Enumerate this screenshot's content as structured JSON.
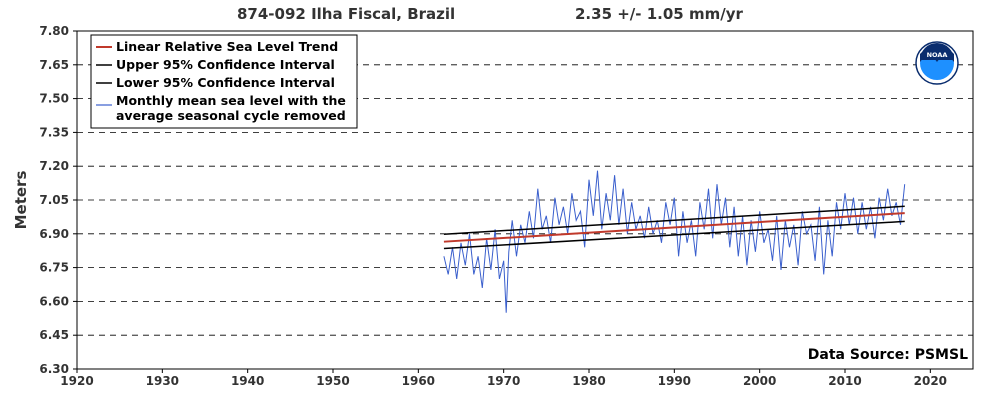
{
  "header": {
    "station": "874-092 Ilha Fiscal, Brazil",
    "trend": "2.35 +/-  1.05 mm/yr"
  },
  "data_source": "Data Source: PSMSL",
  "logo": {
    "text": "NOAA",
    "icon": "noaa-logo-icon"
  },
  "colors": {
    "trend": "#c0392b",
    "confidence": "#000000",
    "monthly": "#3a5fcd",
    "grid": "#000000",
    "logo_dark": "#0a2d6e",
    "logo_light": "#1e90ff"
  },
  "chart_data": {
    "type": "line",
    "title": "874-092 Ilha Fiscal, Brazil",
    "xlabel": "",
    "ylabel": "Meters",
    "xlim": [
      1920,
      2025
    ],
    "ylim": [
      6.3,
      7.8
    ],
    "xticks": [
      "1920",
      "1930",
      "1940",
      "1950",
      "1960",
      "1970",
      "1980",
      "1990",
      "2000",
      "2010",
      "2020"
    ],
    "yticks": [
      "6.30",
      "6.45",
      "6.60",
      "6.75",
      "6.90",
      "7.05",
      "7.20",
      "7.35",
      "7.50",
      "7.65",
      "7.80"
    ],
    "grid": "horizontal dashed",
    "legend_position": "top-left",
    "legend": [
      "Linear Relative Sea Level Trend",
      "Upper 95% Confidence Interval",
      "Lower 95% Confidence Interval",
      "Monthly mean sea level with the",
      "average seasonal cycle removed"
    ],
    "series": [
      {
        "name": "Linear Relative Sea Level Trend",
        "x": [
          1963,
          2017
        ],
        "y": [
          6.865,
          6.992
        ]
      },
      {
        "name": "Upper 95% Confidence Interval",
        "x": [
          1963,
          2017
        ],
        "y": [
          6.898,
          7.022
        ]
      },
      {
        "name": "Lower 95% Confidence Interval",
        "x": [
          1963,
          2017
        ],
        "y": [
          6.835,
          6.955
        ]
      },
      {
        "name": "Monthly mean sea level with the average seasonal cycle removed",
        "x": [
          1963,
          1963.5,
          1964,
          1964.5,
          1965,
          1965.5,
          1966,
          1966.5,
          1967,
          1967.5,
          1968,
          1968.5,
          1969,
          1969.5,
          1970,
          1970.3,
          1970.6,
          1971,
          1971.5,
          1972,
          1972.5,
          1973,
          1973.5,
          1974,
          1974.5,
          1975,
          1975.5,
          1976,
          1976.5,
          1977,
          1977.5,
          1978,
          1978.5,
          1979,
          1979.5,
          1980,
          1980.5,
          1981,
          1981.5,
          1982,
          1982.5,
          1983,
          1983.5,
          1984,
          1984.5,
          1985,
          1985.5,
          1986,
          1986.5,
          1987,
          1987.5,
          1988,
          1988.5,
          1989,
          1989.5,
          1990,
          1990.5,
          1991,
          1991.5,
          1992,
          1992.5,
          1993,
          1993.5,
          1994,
          1994.5,
          1995,
          1995.5,
          1996,
          1996.5,
          1997,
          1997.5,
          1998,
          1998.5,
          1999,
          1999.5,
          2000,
          2000.5,
          2001,
          2001.5,
          2002,
          2002.5,
          2003,
          2003.5,
          2004,
          2004.5,
          2005,
          2005.5,
          2006,
          2006.5,
          2007,
          2007.5,
          2008,
          2008.5,
          2009,
          2009.5,
          2010,
          2010.5,
          2011,
          2011.5,
          2012,
          2012.5,
          2013,
          2013.5,
          2014,
          2014.5,
          2015,
          2015.5,
          2016,
          2016.5,
          2017
        ],
        "y": [
          6.8,
          6.72,
          6.84,
          6.7,
          6.86,
          6.76,
          6.9,
          6.72,
          6.8,
          6.66,
          6.88,
          6.74,
          6.92,
          6.7,
          6.78,
          6.55,
          6.82,
          6.96,
          6.8,
          6.94,
          6.86,
          7.0,
          6.88,
          7.1,
          6.92,
          6.98,
          6.86,
          7.06,
          6.94,
          7.02,
          6.9,
          7.08,
          6.96,
          7.0,
          6.84,
          7.14,
          6.98,
          7.18,
          6.92,
          7.08,
          6.96,
          7.16,
          6.94,
          7.1,
          6.9,
          7.04,
          6.92,
          6.98,
          6.88,
          7.02,
          6.9,
          6.96,
          6.86,
          7.04,
          6.94,
          7.06,
          6.8,
          7.0,
          6.86,
          6.96,
          6.8,
          7.04,
          6.92,
          7.1,
          6.88,
          7.12,
          6.94,
          7.06,
          6.84,
          7.02,
          6.8,
          6.98,
          6.76,
          6.96,
          6.82,
          7.0,
          6.86,
          6.92,
          6.78,
          6.98,
          6.74,
          6.96,
          6.84,
          6.94,
          6.76,
          7.0,
          6.9,
          6.94,
          6.78,
          7.02,
          6.72,
          6.96,
          6.8,
          7.04,
          6.92,
          7.08,
          6.94,
          7.06,
          6.9,
          7.04,
          6.92,
          7.02,
          6.88,
          7.06,
          6.96,
          7.1,
          6.98,
          7.04,
          6.94,
          7.12
        ]
      }
    ]
  }
}
